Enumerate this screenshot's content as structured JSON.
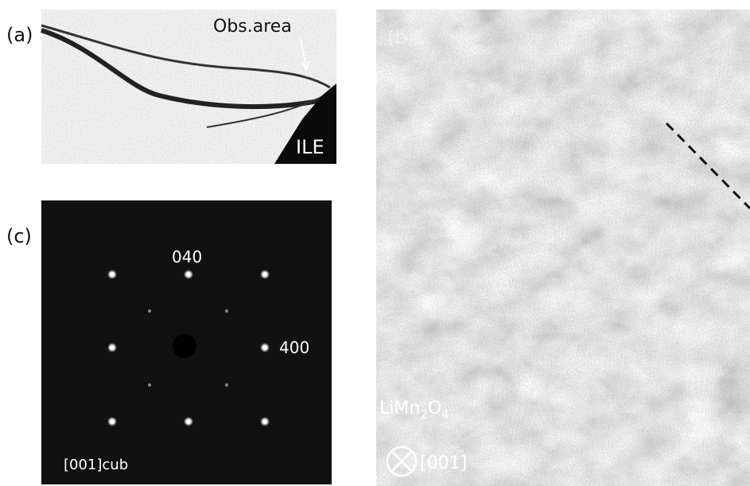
{
  "panels": [
    {
      "label": "(a)",
      "annotations": [
        "Obs.area",
        "ILE"
      ]
    },
    {
      "label": "(b)",
      "formula": {
        "base": "LiMn",
        "sub1": "2",
        "mid": "O",
        "sub2": "4"
      },
      "zone_axis": "[001]"
    },
    {
      "label": "(c)",
      "spots": [
        "040",
        "400"
      ],
      "zone_axis": "[001]cub"
    }
  ]
}
